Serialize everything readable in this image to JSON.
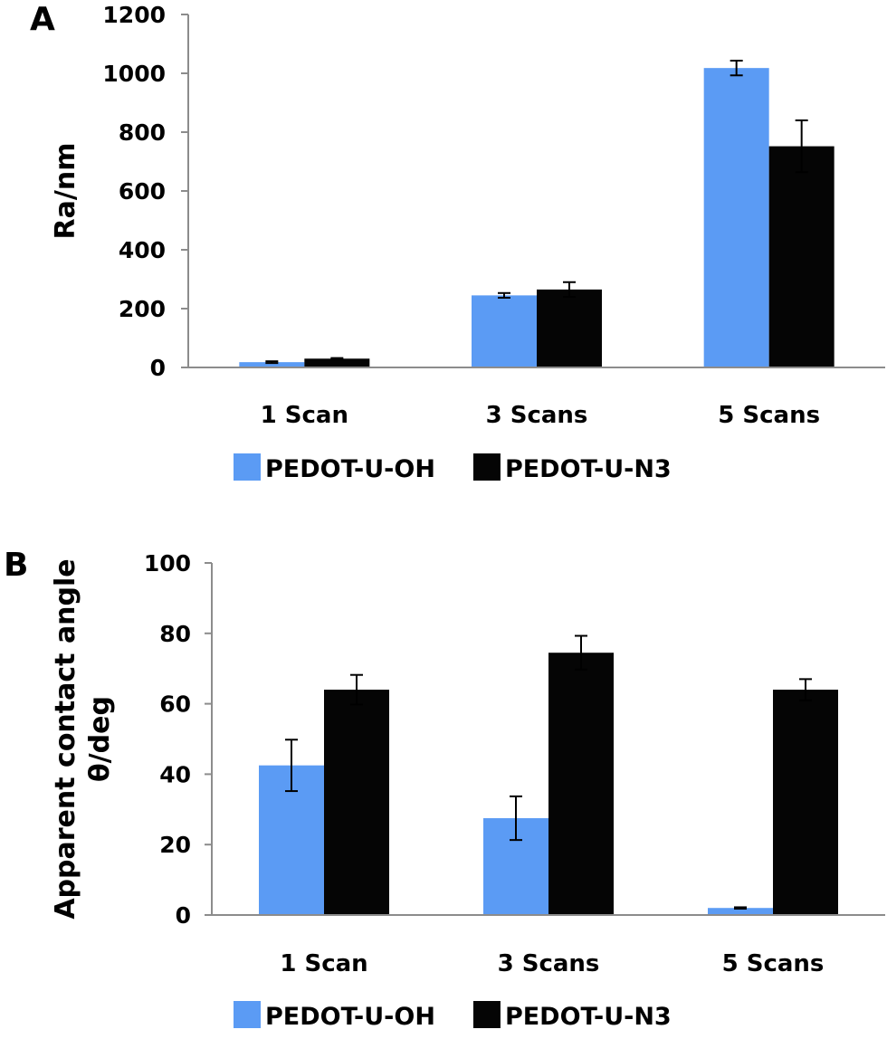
{
  "figure": {
    "panels": [
      "A",
      "B"
    ]
  },
  "colors": {
    "series1": "#5b9bf4",
    "series2": "#050505",
    "axis": "#8c8c8c",
    "errorbar": "#000000"
  },
  "chart_data": [
    {
      "type": "bar",
      "panel": "A",
      "title": "",
      "xlabel": "",
      "ylabel": "Ra/nm",
      "ylim": [
        0,
        1200
      ],
      "yticks": [
        0,
        200,
        400,
        600,
        800,
        1000,
        1200
      ],
      "grid": false,
      "legend": "bottom",
      "categories": [
        "1 Scan",
        "3 Scans",
        "5 Scans"
      ],
      "series": [
        {
          "name": "PEDOT-U-OH",
          "values": [
            18,
            245,
            1018
          ],
          "errors": [
            3,
            8,
            25
          ]
        },
        {
          "name": "PEDOT-U-N3",
          "values": [
            30,
            265,
            752
          ],
          "errors": [
            2,
            25,
            88
          ]
        }
      ]
    },
    {
      "type": "bar",
      "panel": "B",
      "title": "",
      "xlabel": "",
      "ylabel": "Apparent contact angle θ/deg",
      "ylabel_lines": [
        "Apparent contact angle",
        "θ/deg"
      ],
      "ylim": [
        0,
        100
      ],
      "yticks": [
        0,
        20,
        40,
        60,
        80,
        100
      ],
      "grid": false,
      "legend": "bottom",
      "categories": [
        "1 Scan",
        "3 Scans",
        "5 Scans"
      ],
      "series": [
        {
          "name": "PEDOT-U-OH",
          "values": [
            42.5,
            27.5,
            2
          ],
          "errors": [
            7.3,
            6.2,
            0.2
          ]
        },
        {
          "name": "PEDOT-U-N3",
          "values": [
            64,
            74.5,
            64
          ],
          "errors": [
            4.2,
            4.8,
            3
          ]
        }
      ]
    }
  ]
}
